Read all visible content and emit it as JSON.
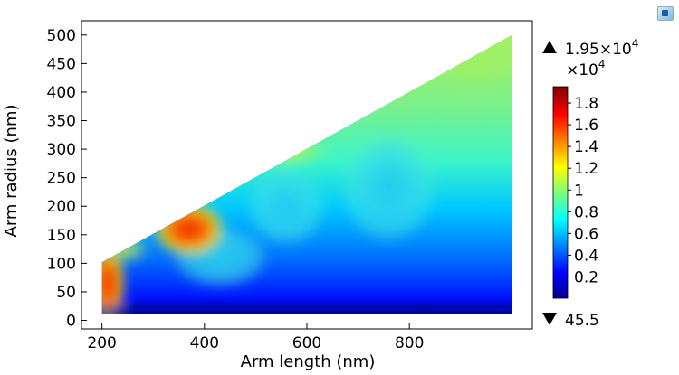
{
  "chart_data": {
    "type": "heatmap",
    "title": "",
    "xlabel": "Arm length (nm)",
    "ylabel": "Arm radius (nm)",
    "xlim": [
      160,
      1040
    ],
    "ylim": [
      -15,
      525
    ],
    "x_ticks": [
      200,
      400,
      600,
      800
    ],
    "y_ticks": [
      0,
      50,
      100,
      150,
      200,
      250,
      300,
      350,
      400,
      450,
      500
    ],
    "domain": {
      "x_range": [
        200,
        1000
      ],
      "y_min": 12,
      "upper_edge": [
        [
          200,
          102
        ],
        [
          1000,
          500
        ]
      ]
    },
    "colormap": "rainbow (blue-cyan-green-yellow-red)",
    "colorbar": {
      "max_label": "1.95×10",
      "max_exponent": "4",
      "multiplier": "×10",
      "multiplier_exponent": "4",
      "min_label": "45.5",
      "ticks": [
        0.2,
        0.4,
        0.6,
        0.8,
        1,
        1.2,
        1.4,
        1.6,
        1.8
      ],
      "range": [
        0.0045,
        1.95
      ]
    },
    "hotspots_1e4": [
      {
        "x": 210,
        "y": 65,
        "value": 1.85
      },
      {
        "x": 370,
        "y": 160,
        "value": 1.75
      },
      {
        "x": 560,
        "y": 300,
        "value": 1.05
      },
      {
        "x": 760,
        "y": 240,
        "value": 0.7
      },
      {
        "x": 1000,
        "y": 480,
        "value": 1.0
      }
    ]
  }
}
